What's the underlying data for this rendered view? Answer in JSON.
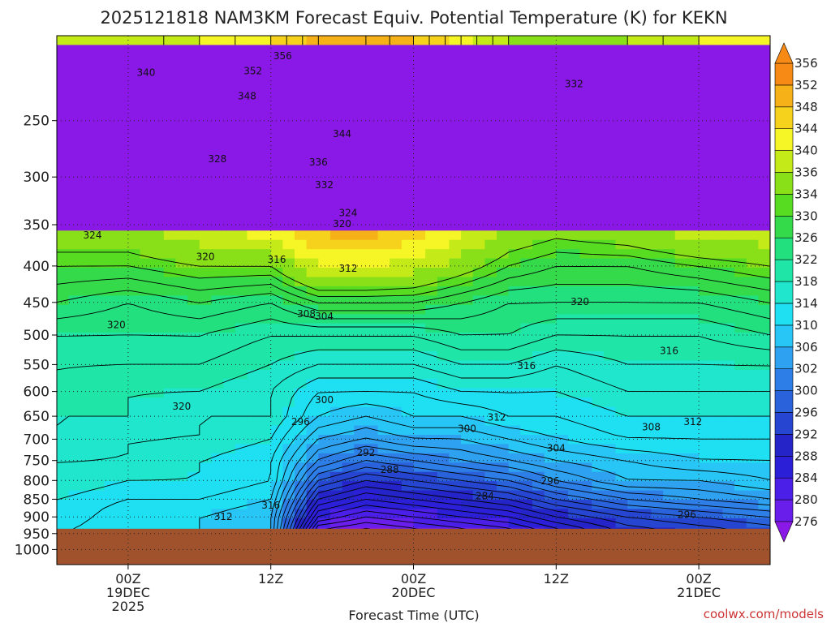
{
  "chart_data": {
    "type": "heatmap",
    "title": "2025121818 NAM3KM Forecast Equiv. Potential Temperature (K) for KEKN",
    "xlabel": "Forecast Time (UTC)",
    "ylabel": "",
    "x_range_hours": [
      -6,
      54
    ],
    "y_range_hpa": [
      1050,
      190
    ],
    "yticks": [
      250,
      300,
      350,
      400,
      450,
      500,
      550,
      600,
      650,
      700,
      750,
      800,
      850,
      900,
      950,
      1000
    ],
    "xticks": [
      {
        "hour": 0,
        "lines": [
          "00Z",
          "19DEC",
          "2025"
        ]
      },
      {
        "hour": 12,
        "lines": [
          "12Z"
        ]
      },
      {
        "hour": 24,
        "lines": [
          "00Z",
          "20DEC"
        ]
      },
      {
        "hour": 36,
        "lines": [
          "12Z"
        ]
      },
      {
        "hour": 48,
        "lines": [
          "00Z",
          "21DEC"
        ]
      }
    ],
    "grid": "dotted",
    "surface_pressure_hpa": 935,
    "colorbar": {
      "levels": [
        276,
        280,
        284,
        288,
        292,
        296,
        300,
        302,
        306,
        310,
        314,
        318,
        322,
        326,
        330,
        334,
        336,
        340,
        344,
        348,
        352,
        356
      ],
      "colors": [
        "#8a18e6",
        "#6a1eec",
        "#4b1fe8",
        "#2c1fd8",
        "#2424c8",
        "#2645d0",
        "#2a62dc",
        "#2e7ee8",
        "#2ea2f0",
        "#28c6f6",
        "#1fe0f2",
        "#1fe6cc",
        "#1fe6a6",
        "#22e07e",
        "#34da4a",
        "#58dc22",
        "#8ae018",
        "#c4ea18",
        "#f6f626",
        "#f6d21c",
        "#f6b018",
        "#f68a14"
      ]
    },
    "series": [
      {
        "time_hours": -6,
        "theta_e_at_950_to_200hpa": [
          316,
          318,
          318,
          320,
          320,
          322,
          322,
          324,
          324,
          326,
          330,
          334,
          340
        ]
      },
      {
        "time_hours": 0,
        "theta_e_at_950_to_200hpa": [
          314,
          314,
          316,
          318,
          320,
          320,
          322,
          322,
          324,
          326,
          328,
          334,
          340
        ]
      },
      {
        "time_hours": 6,
        "theta_e_at_950_to_200hpa": [
          314,
          314,
          316,
          318,
          318,
          320,
          320,
          322,
          324,
          326,
          330,
          336,
          344
        ]
      },
      {
        "time_hours": 12,
        "theta_e_at_950_to_200hpa": [
          312,
          312,
          314,
          316,
          316,
          318,
          320,
          320,
          322,
          324,
          328,
          336,
          348
        ]
      },
      {
        "time_hours": 16,
        "theta_e_at_950_to_200hpa": [
          280,
          288,
          294,
          300,
          306,
          310,
          314,
          316,
          320,
          324,
          332,
          344,
          354
        ]
      },
      {
        "time_hours": 20,
        "theta_e_at_950_to_200hpa": [
          278,
          284,
          290,
          296,
          302,
          308,
          312,
          316,
          320,
          324,
          332,
          344,
          356
        ]
      },
      {
        "time_hours": 24,
        "theta_e_at_950_to_200hpa": [
          280,
          286,
          292,
          298,
          304,
          310,
          314,
          316,
          320,
          324,
          332,
          342,
          352
        ]
      },
      {
        "time_hours": 28,
        "theta_e_at_950_to_200hpa": [
          282,
          288,
          294,
          300,
          306,
          310,
          314,
          318,
          322,
          326,
          330,
          338,
          346
        ]
      },
      {
        "time_hours": 32,
        "theta_e_at_950_to_200hpa": [
          284,
          290,
          296,
          302,
          308,
          312,
          316,
          318,
          322,
          326,
          328,
          334,
          340
        ]
      },
      {
        "time_hours": 36,
        "theta_e_at_950_to_200hpa": [
          288,
          294,
          300,
          306,
          310,
          314,
          316,
          318,
          320,
          324,
          328,
          332,
          338
        ]
      },
      {
        "time_hours": 42,
        "theta_e_at_950_to_200hpa": [
          294,
          298,
          304,
          310,
          312,
          316,
          318,
          320,
          322,
          324,
          328,
          332,
          340
        ]
      },
      {
        "time_hours": 48,
        "theta_e_at_950_to_200hpa": [
          296,
          300,
          306,
          310,
          314,
          316,
          318,
          320,
          322,
          324,
          328,
          334,
          344
        ]
      },
      {
        "time_hours": 54,
        "theta_e_at_950_to_200hpa": [
          298,
          302,
          308,
          312,
          314,
          316,
          318,
          320,
          322,
          326,
          330,
          336,
          344
        ]
      }
    ],
    "contour_labels": [
      {
        "text": "356",
        "hour": 13.0,
        "hpa": 203
      },
      {
        "text": "352",
        "hour": 10.5,
        "hpa": 213
      },
      {
        "text": "348",
        "hour": 10.0,
        "hpa": 231
      },
      {
        "text": "344",
        "hour": 18.0,
        "hpa": 261
      },
      {
        "text": "340",
        "hour": 1.5,
        "hpa": 214
      },
      {
        "text": "336",
        "hour": 16.0,
        "hpa": 286
      },
      {
        "text": "332",
        "hour": 16.5,
        "hpa": 308
      },
      {
        "text": "332",
        "hour": 37.5,
        "hpa": 222
      },
      {
        "text": "328",
        "hour": 7.5,
        "hpa": 283
      },
      {
        "text": "324",
        "hour": -3.0,
        "hpa": 362
      },
      {
        "text": "324",
        "hour": 18.5,
        "hpa": 337
      },
      {
        "text": "320",
        "hour": 18.0,
        "hpa": 349
      },
      {
        "text": "320",
        "hour": 6.5,
        "hpa": 388
      },
      {
        "text": "320",
        "hour": -1.0,
        "hpa": 484
      },
      {
        "text": "320",
        "hour": 4.5,
        "hpa": 630
      },
      {
        "text": "320",
        "hour": 38.0,
        "hpa": 449
      },
      {
        "text": "316",
        "hour": 12.5,
        "hpa": 392
      },
      {
        "text": "316",
        "hour": 12.0,
        "hpa": 867
      },
      {
        "text": "316",
        "hour": 33.5,
        "hpa": 552
      },
      {
        "text": "316",
        "hour": 45.5,
        "hpa": 526
      },
      {
        "text": "312",
        "hour": 18.5,
        "hpa": 403
      },
      {
        "text": "312",
        "hour": 8.0,
        "hpa": 900
      },
      {
        "text": "312",
        "hour": 31.0,
        "hpa": 652
      },
      {
        "text": "312",
        "hour": 47.5,
        "hpa": 662
      },
      {
        "text": "308",
        "hour": 15.0,
        "hpa": 467
      },
      {
        "text": "308",
        "hour": 44.0,
        "hpa": 673
      },
      {
        "text": "304",
        "hour": 16.5,
        "hpa": 471
      },
      {
        "text": "304",
        "hour": 36.0,
        "hpa": 721
      },
      {
        "text": "300",
        "hour": 16.5,
        "hpa": 617
      },
      {
        "text": "300",
        "hour": 28.5,
        "hpa": 677
      },
      {
        "text": "296",
        "hour": 14.5,
        "hpa": 662
      },
      {
        "text": "296",
        "hour": 35.5,
        "hpa": 801
      },
      {
        "text": "296",
        "hour": 47.0,
        "hpa": 894
      },
      {
        "text": "292",
        "hour": 20.0,
        "hpa": 731
      },
      {
        "text": "288",
        "hour": 22.0,
        "hpa": 773
      },
      {
        "text": "284",
        "hour": 30.0,
        "hpa": 841
      }
    ],
    "watermark": "coolwx.com/models"
  }
}
